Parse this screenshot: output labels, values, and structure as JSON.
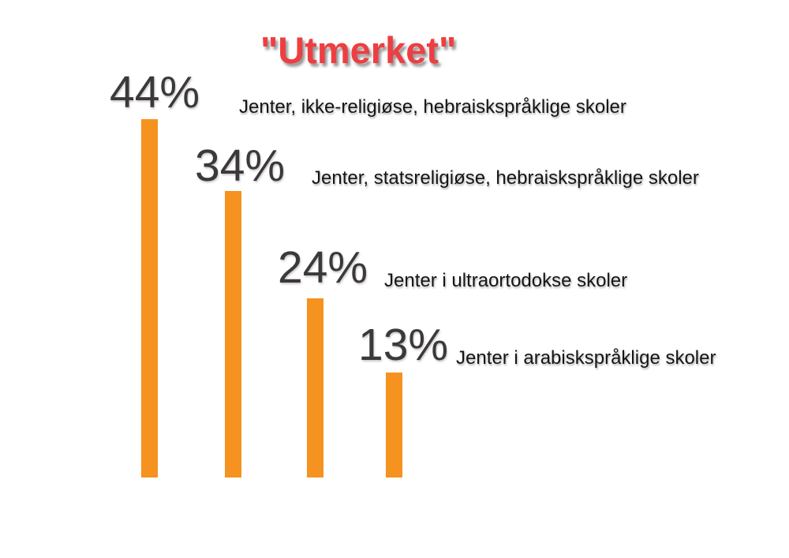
{
  "page": {
    "background_color": "#FFFFFF"
  },
  "chart_data": {
    "type": "bar",
    "orientation": "vertical",
    "title": "\"Utmerket\"",
    "title_color": "#EE3E41",
    "bar_color": "#F6921F",
    "value_label_color": "#3A393B",
    "category_label_color": "#151515",
    "grid": false,
    "legend": false,
    "categories": [
      "Jenter, ikke-religiøse, hebraiskspråklige skoler",
      "Jenter, statsreligiøse, hebraiskspråklige skoler",
      "Jenter i ultraortodokse skoler",
      "Jenter i arabiskspråklige skoler"
    ],
    "values": [
      44,
      34,
      24,
      13
    ],
    "value_labels": [
      "44%",
      "34%",
      "24%",
      "13%"
    ],
    "value_label_position": "above-bar",
    "category_label_position": "right-of-value-label",
    "ylim": [
      0,
      44
    ]
  }
}
